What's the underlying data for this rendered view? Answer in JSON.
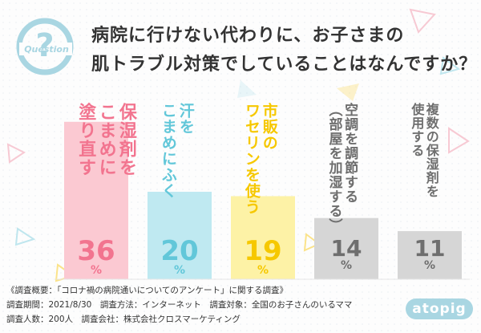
{
  "question_badge": {
    "mark": "?",
    "text": "Question"
  },
  "title_lines": [
    "病院に行けない代わりに、お子さまの",
    "肌トラブル対策でしていることはなんですか？"
  ],
  "chart_data": {
    "type": "bar",
    "categories": [
      "保湿剤をこまめに塗り直す",
      "汗をこまめにふく",
      "市販のワセリンを使う",
      "空調を調節する（部屋を加湿する）",
      "複数の保湿剤を使用する"
    ],
    "label_columns": [
      [
        "保湿剤を",
        "こまめに",
        "塗り直す"
      ],
      [
        "汗を",
        "こまめにふく"
      ],
      [
        "市販の",
        "ワセリンを使う"
      ],
      [
        "空調を調節する",
        "（部屋を加湿する）"
      ],
      [
        "複数の保湿剤を",
        "使用する"
      ]
    ],
    "values": [
      36,
      20,
      19,
      14,
      11
    ],
    "unit": "%",
    "ylim": [
      0,
      40
    ],
    "colors": [
      "#f2748f",
      "#62c7d9",
      "#f6c800",
      "#6e6e6e",
      "#6e6e6e"
    ],
    "bar_fills": [
      "#fbc9d2",
      "#bfe9f1",
      "#fdf2a6",
      "#d6d6d6",
      "#d6d6d6"
    ]
  },
  "footer_lines": [
    "《調査概要：「コロナ禍の病院通いについてのアンケート」に関する調査》",
    "調査期間：2021/8/30　調査方法：インターネット　調査対象：全国のお子さんのいるママ",
    "調査人数：200人　調査会社：株式会社クロスマーケティング"
  ],
  "logo_text": "atopig",
  "accent_color": "#a9d6e2"
}
